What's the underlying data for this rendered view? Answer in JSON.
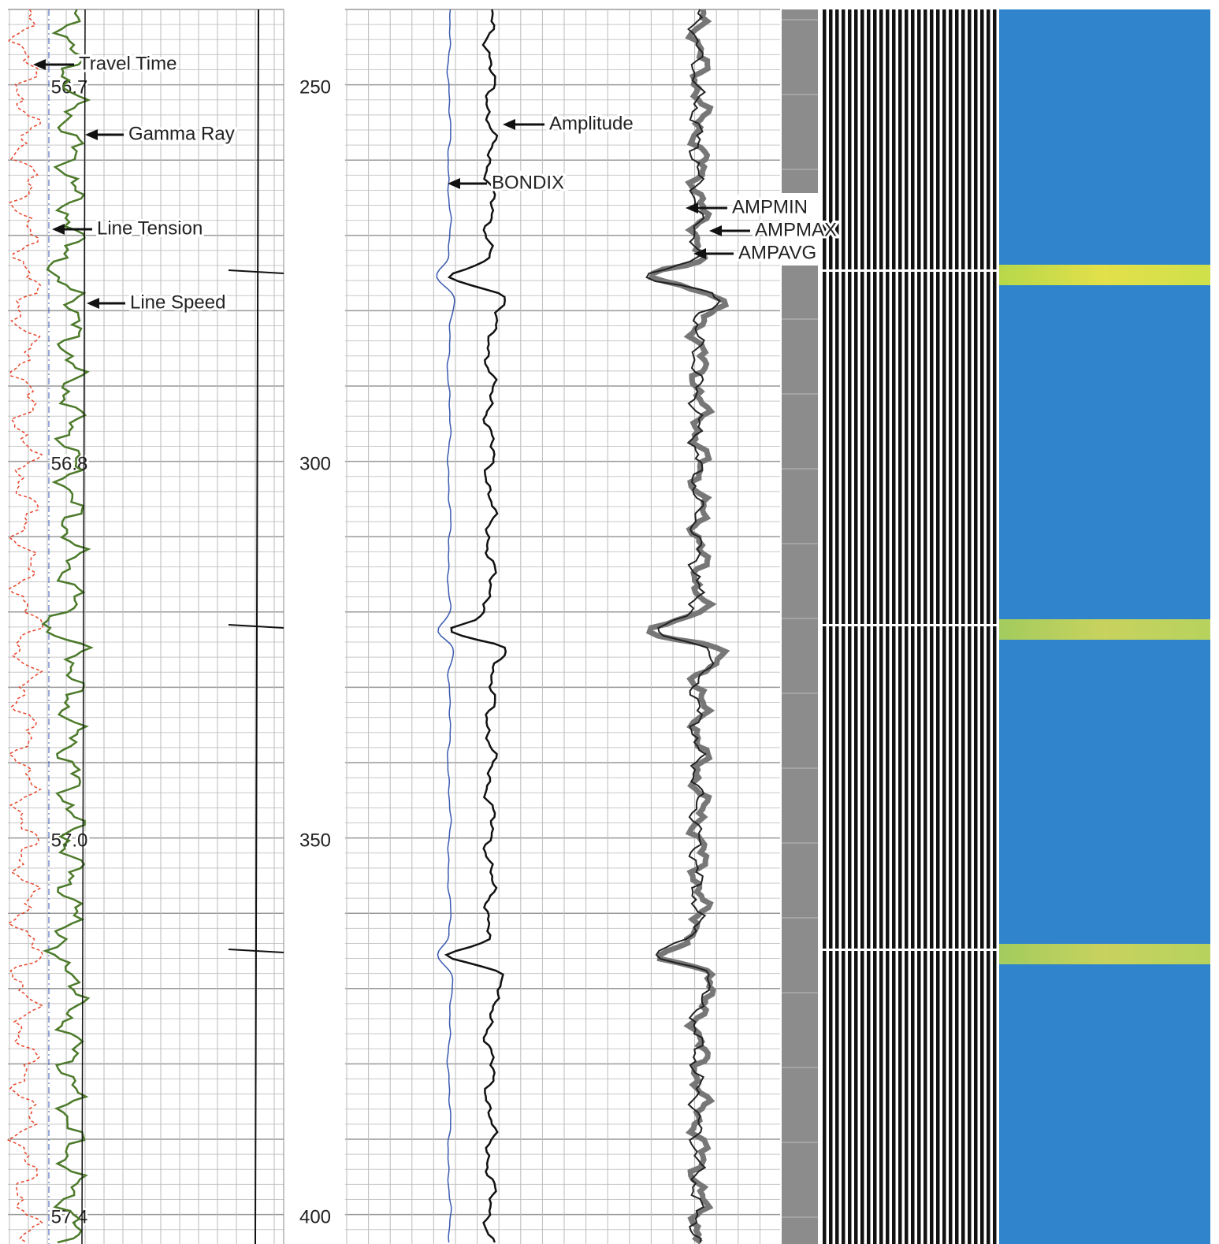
{
  "annotations": [
    "Travel Time",
    "Gamma Ray",
    "Line Tension",
    "Line Speed",
    "Amplitude",
    "BONDIX",
    "AMPMIN",
    "AMPMAX",
    "AMPAVG"
  ],
  "depths": [
    250,
    300,
    350,
    400
  ],
  "times": [
    "56.7",
    "56.8",
    "57.0",
    "57.4"
  ]
}
